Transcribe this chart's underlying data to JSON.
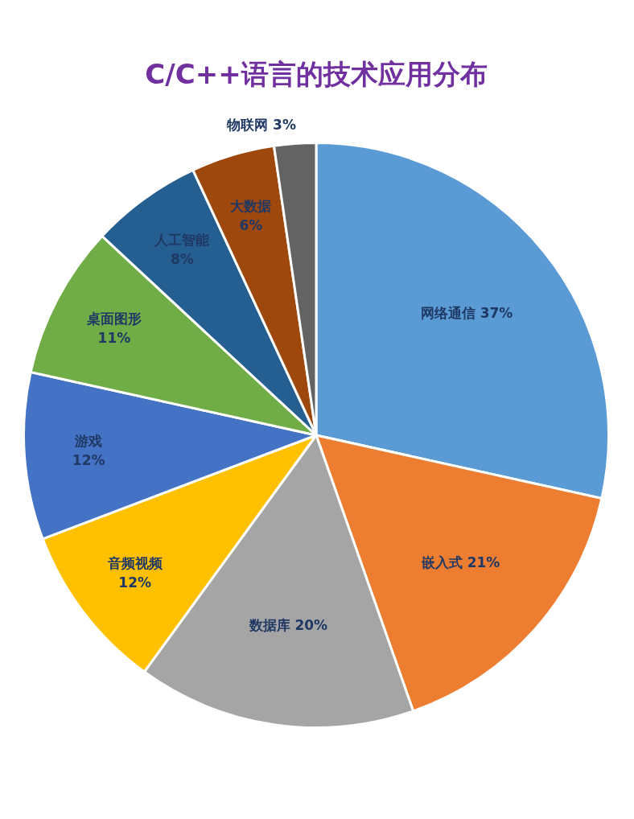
{
  "chart_data": {
    "type": "pie",
    "title": "C/C++语言的技术应用分布",
    "categories": [
      "网络通信",
      "嵌入式",
      "数据库",
      "音频视频",
      "游戏",
      "桌面图形",
      "人工智能",
      "大数据",
      "物联网"
    ],
    "values": [
      37,
      21,
      20,
      12,
      12,
      11,
      8,
      6,
      3
    ],
    "value_labels": [
      "37%",
      "21%",
      "20%",
      "12%",
      "12%",
      "11%",
      "8%",
      "6%",
      "3%"
    ],
    "colors": [
      "#5b9bd5",
      "#ed7d31",
      "#a5a5a5",
      "#ffc000",
      "#4472c4",
      "#70ad47",
      "#255e91",
      "#9e480e",
      "#636363"
    ],
    "legend": false
  }
}
